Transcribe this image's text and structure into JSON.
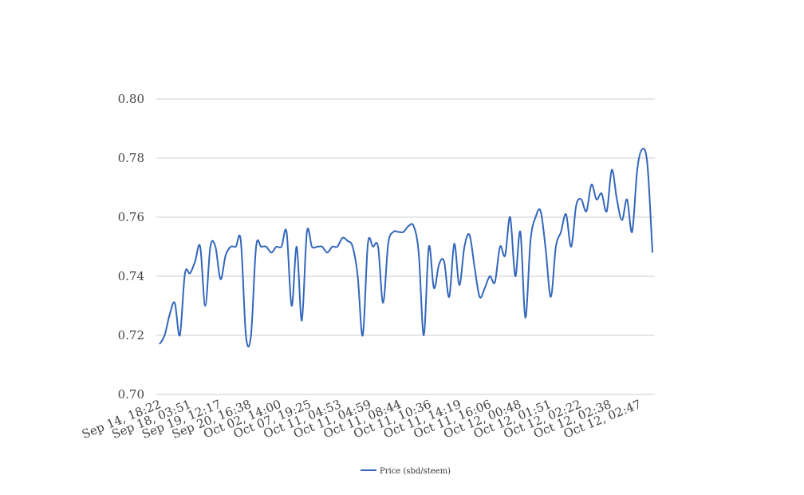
{
  "chart_data": {
    "type": "line",
    "title": "",
    "xlabel": "",
    "ylabel": "",
    "ylim": [
      0.7,
      0.8
    ],
    "y_ticks": [
      "0.70",
      "0.72",
      "0.74",
      "0.76",
      "0.78",
      "0.80"
    ],
    "y_tick_values": [
      0.7,
      0.72,
      0.74,
      0.76,
      0.78,
      0.8
    ],
    "x_tick_labels": [
      "Sep 14, 18:22",
      "Sep 18, 03:51",
      "Sep 19, 12:17",
      "Sep 20, 16:38",
      "Oct 02, 14:00",
      "Oct 07, 19:25",
      "Oct 11, 04:53",
      "Oct 11, 04:59",
      "Oct 11, 08:44",
      "Oct 11, 10:36",
      "Oct 11, 14:19",
      "Oct 11, 16:06",
      "Oct 12, 00:48",
      "Oct 12, 01:51",
      "Oct 12, 02:22",
      "Oct 12, 02:38",
      "Oct 12, 02:47"
    ],
    "grid": true,
    "legend": "bottom",
    "colors": {
      "series": "#3366bb",
      "grid": "#cccccc"
    },
    "series": [
      {
        "name": "Price (sbd/steem)",
        "values": [
          0.717,
          0.72,
          0.727,
          0.731,
          0.72,
          0.741,
          0.741,
          0.745,
          0.75,
          0.73,
          0.75,
          0.75,
          0.739,
          0.747,
          0.75,
          0.75,
          0.752,
          0.72,
          0.72,
          0.75,
          0.75,
          0.75,
          0.748,
          0.75,
          0.75,
          0.755,
          0.73,
          0.75,
          0.725,
          0.755,
          0.75,
          0.75,
          0.75,
          0.748,
          0.75,
          0.75,
          0.753,
          0.752,
          0.75,
          0.74,
          0.72,
          0.751,
          0.75,
          0.75,
          0.731,
          0.751,
          0.755,
          0.755,
          0.755,
          0.757,
          0.757,
          0.748,
          0.72,
          0.75,
          0.736,
          0.744,
          0.745,
          0.733,
          0.751,
          0.737,
          0.75,
          0.754,
          0.743,
          0.733,
          0.736,
          0.74,
          0.738,
          0.75,
          0.747,
          0.76,
          0.74,
          0.755,
          0.726,
          0.752,
          0.76,
          0.762,
          0.749,
          0.733,
          0.75,
          0.755,
          0.761,
          0.75,
          0.764,
          0.766,
          0.762,
          0.771,
          0.766,
          0.768,
          0.762,
          0.776,
          0.766,
          0.759,
          0.766,
          0.755,
          0.776,
          0.783,
          0.778,
          0.748
        ]
      }
    ]
  }
}
